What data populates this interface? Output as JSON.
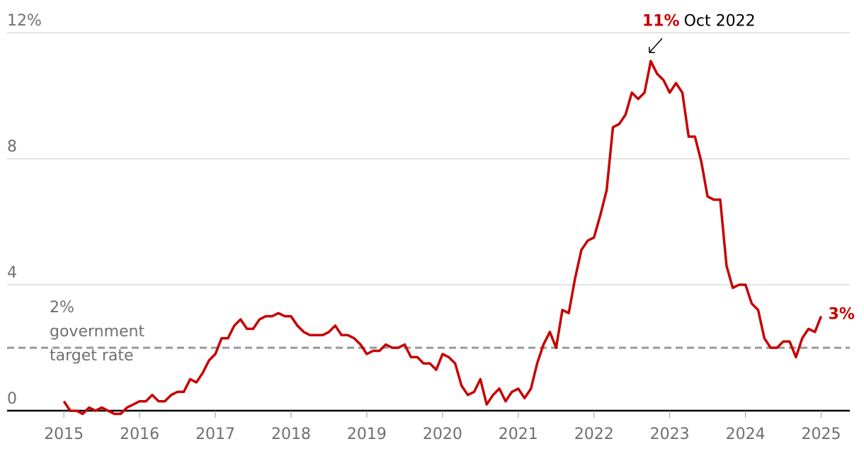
{
  "chart_data": {
    "type": "line",
    "x": [
      2015,
      2015.083,
      2015.167,
      2015.25,
      2015.333,
      2015.417,
      2015.5,
      2015.583,
      2015.667,
      2015.75,
      2015.833,
      2015.917,
      2016,
      2016.083,
      2016.167,
      2016.25,
      2016.333,
      2016.417,
      2016.5,
      2016.583,
      2016.667,
      2016.75,
      2016.833,
      2016.917,
      2017,
      2017.083,
      2017.167,
      2017.25,
      2017.333,
      2017.417,
      2017.5,
      2017.583,
      2017.667,
      2017.75,
      2017.833,
      2017.917,
      2018,
      2018.083,
      2018.167,
      2018.25,
      2018.333,
      2018.417,
      2018.5,
      2018.583,
      2018.667,
      2018.75,
      2018.833,
      2018.917,
      2019,
      2019.083,
      2019.167,
      2019.25,
      2019.333,
      2019.417,
      2019.5,
      2019.583,
      2019.667,
      2019.75,
      2019.833,
      2019.917,
      2020,
      2020.083,
      2020.167,
      2020.25,
      2020.333,
      2020.417,
      2020.5,
      2020.583,
      2020.667,
      2020.75,
      2020.833,
      2020.917,
      2021,
      2021.083,
      2021.167,
      2021.25,
      2021.333,
      2021.417,
      2021.5,
      2021.583,
      2021.667,
      2021.75,
      2021.833,
      2021.917,
      2022,
      2022.083,
      2022.167,
      2022.25,
      2022.333,
      2022.417,
      2022.5,
      2022.583,
      2022.667,
      2022.75,
      2022.833,
      2022.917,
      2023,
      2023.083,
      2023.167,
      2023.25,
      2023.333,
      2023.417,
      2023.5,
      2023.583,
      2023.667,
      2023.75,
      2023.833,
      2023.917,
      2024,
      2024.083,
      2024.167,
      2024.25,
      2024.333,
      2024.417,
      2024.5,
      2024.583,
      2024.667,
      2024.75,
      2024.833,
      2024.917,
      2025
    ],
    "series": [
      {
        "color": "#c70000",
        "values": [
          0.3,
          0.0,
          0.0,
          -0.1,
          0.1,
          0.0,
          0.1,
          0.0,
          -0.1,
          -0.1,
          0.1,
          0.2,
          0.3,
          0.3,
          0.5,
          0.3,
          0.3,
          0.5,
          0.6,
          0.6,
          1.0,
          0.9,
          1.2,
          1.6,
          1.8,
          2.3,
          2.3,
          2.7,
          2.9,
          2.6,
          2.6,
          2.9,
          3.0,
          3.0,
          3.1,
          3.0,
          3.0,
          2.7,
          2.5,
          2.4,
          2.4,
          2.4,
          2.5,
          2.7,
          2.4,
          2.4,
          2.3,
          2.1,
          1.8,
          1.9,
          1.9,
          2.1,
          2.0,
          2.0,
          2.1,
          1.7,
          1.7,
          1.5,
          1.5,
          1.3,
          1.8,
          1.7,
          1.5,
          0.8,
          0.5,
          0.6,
          1.0,
          0.2,
          0.5,
          0.7,
          0.3,
          0.6,
          0.7,
          0.4,
          0.7,
          1.5,
          2.1,
          2.5,
          2.0,
          3.2,
          3.1,
          4.2,
          5.1,
          5.4,
          5.5,
          6.2,
          7.0,
          9.0,
          9.1,
          9.4,
          10.1,
          9.9,
          10.1,
          11.1,
          10.7,
          10.5,
          10.1,
          10.4,
          10.1,
          8.7,
          8.7,
          7.9,
          6.8,
          6.7,
          6.7,
          4.6,
          3.9,
          4.0,
          4.0,
          3.4,
          3.2,
          2.3,
          2.0,
          2.0,
          2.2,
          2.2,
          1.7,
          2.3,
          2.6,
          2.5,
          3.0
        ]
      }
    ],
    "xlim": [
      2014.25,
      2025.5
    ],
    "ylim": [
      -0.3,
      12.5
    ],
    "xticks": [
      2015,
      2016,
      2017,
      2018,
      2019,
      2020,
      2021,
      2022,
      2023,
      2024,
      2025
    ],
    "yticks": [
      0,
      4,
      8,
      {
        "value": 12,
        "label": "12%"
      }
    ],
    "grid": true,
    "reference_line": {
      "value": 2,
      "label": [
        "2%",
        "government",
        "target rate"
      ]
    },
    "peak_annotation": {
      "label": "11%",
      "date": "Oct 2022"
    },
    "last_annotation": {
      "label": "3%"
    }
  }
}
